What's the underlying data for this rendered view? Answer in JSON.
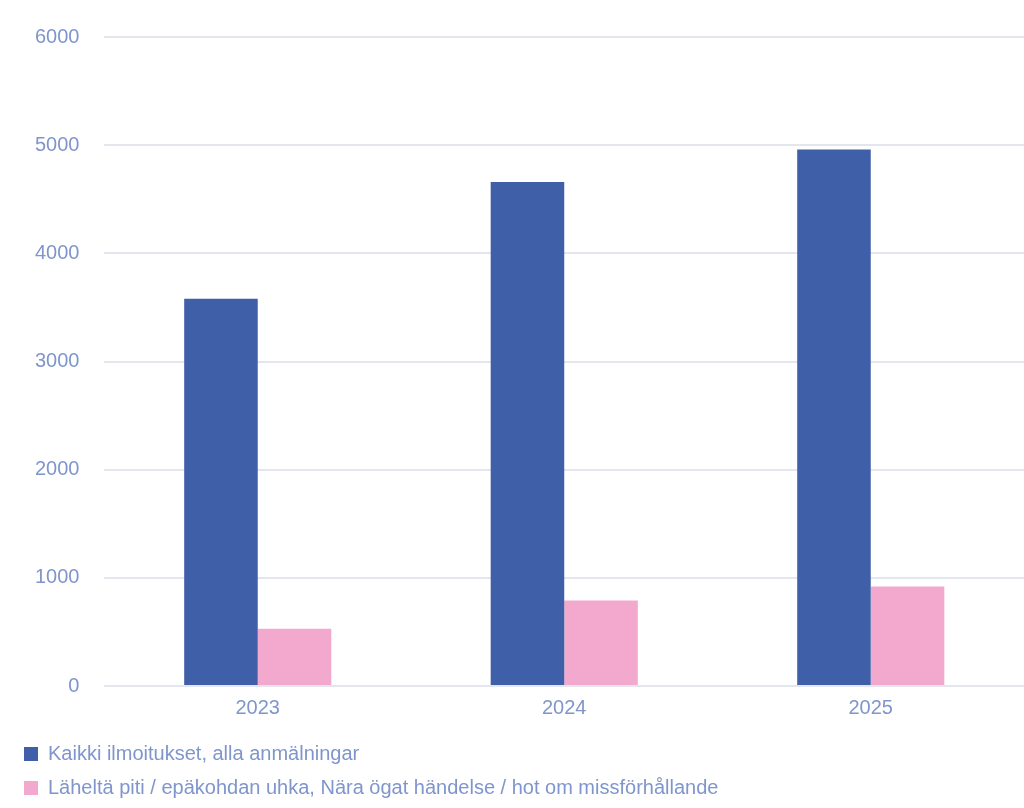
{
  "chart_data": {
    "type": "bar",
    "categories": [
      "2023",
      "2024",
      "2025"
    ],
    "series": [
      {
        "name": "Kaikki ilmoitukset, alla anmälningar",
        "color": "#3f60a8",
        "values": [
          3580,
          4660,
          4960
        ]
      },
      {
        "name": "Läheltä piti / epäkohdan uhka, Nära ögat händelse / hot om missförhållande",
        "color": "#f3a9cd",
        "values": [
          530,
          790,
          920
        ]
      }
    ],
    "ylim": [
      0,
      6000
    ],
    "yticks": [
      0,
      1000,
      2000,
      3000,
      4000,
      5000,
      6000
    ],
    "grid": "y",
    "legend": "bottom left"
  }
}
